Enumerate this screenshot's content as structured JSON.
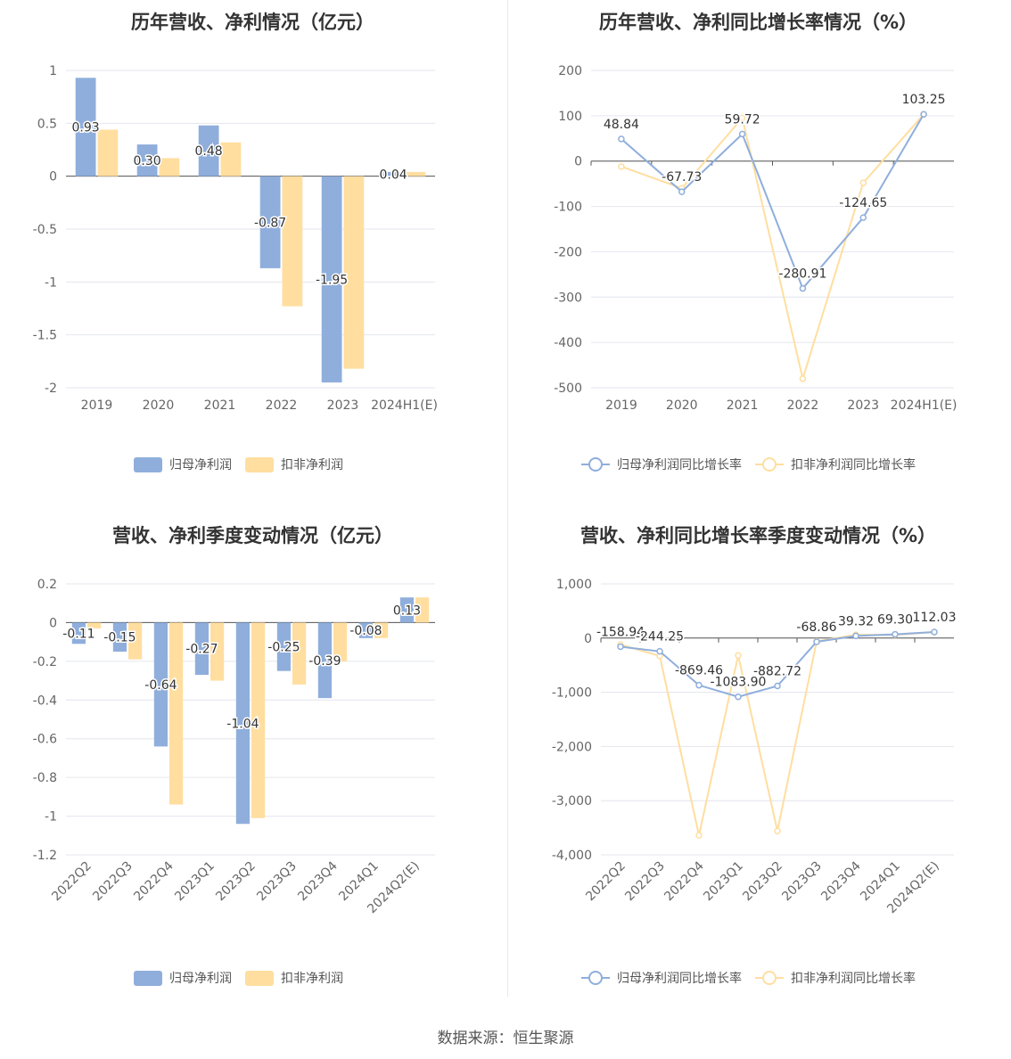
{
  "source_label": "数据来源：恒生聚源",
  "colors": {
    "series1": "#8faedc",
    "series2": "#ffdea0",
    "grid": "#e4e6ee",
    "axis": "#555555"
  },
  "chart_data": [
    {
      "type": "bar",
      "title": "历年营收、净利情况（亿元）",
      "categories": [
        "2019",
        "2020",
        "2021",
        "2022",
        "2023",
        "2024H1(E)"
      ],
      "ylim": [
        -2,
        1
      ],
      "yticks": [
        "1",
        "0.5",
        "0",
        "-0.5",
        "-1",
        "-1.5",
        "-2"
      ],
      "series": [
        {
          "name": "归母净利润",
          "values": [
            0.93,
            0.3,
            0.48,
            -0.87,
            -1.95,
            0.04
          ],
          "labels": [
            "0.93",
            "0.30",
            "0.48",
            "-0.87",
            "-1.95",
            "0.04"
          ]
        },
        {
          "name": "扣非净利润",
          "values": [
            0.44,
            0.17,
            0.32,
            -1.23,
            -1.82,
            0.04
          ]
        }
      ],
      "grid": true,
      "legend": "bottom-center"
    },
    {
      "type": "line",
      "title": "历年营收、净利同比增长率情况（%）",
      "categories": [
        "2019",
        "2020",
        "2021",
        "2022",
        "2023",
        "2024H1(E)"
      ],
      "ylim": [
        -500,
        200
      ],
      "yticks": [
        "200",
        "100",
        "0",
        "-100",
        "-200",
        "-300",
        "-400",
        "-500"
      ],
      "series": [
        {
          "name": "归母净利润同比增长率",
          "values": [
            48.84,
            -67.73,
            59.72,
            -280.91,
            -124.65,
            103.25
          ],
          "labels": [
            "48.84",
            "-67.73",
            "59.72",
            "-280.91",
            "-124.65",
            "103.25"
          ]
        },
        {
          "name": "扣非净利润同比增长率",
          "values": [
            -12,
            -60,
            95,
            -480,
            -48,
            103
          ]
        }
      ],
      "grid": true,
      "legend": "bottom-center"
    },
    {
      "type": "bar",
      "title": "营收、净利季度变动情况（亿元）",
      "categories": [
        "2022Q2",
        "2022Q3",
        "2022Q4",
        "2023Q1",
        "2023Q2",
        "2023Q3",
        "2023Q4",
        "2024Q1",
        "2024Q2(E)"
      ],
      "ylim": [
        -1.2,
        0.2
      ],
      "yticks": [
        "0.2",
        "0",
        "-0.2",
        "-0.4",
        "-0.6",
        "-0.8",
        "-1",
        "-1.2"
      ],
      "series": [
        {
          "name": "归母净利润",
          "values": [
            -0.11,
            -0.15,
            -0.64,
            -0.27,
            -1.04,
            -0.25,
            -0.39,
            -0.08,
            0.13
          ],
          "labels": [
            "-0.11",
            "-0.15",
            "-0.64",
            "-0.27",
            "-1.04",
            "-0.25",
            "-0.39",
            "-0.08",
            "0.13"
          ]
        },
        {
          "name": "扣非净利润",
          "values": [
            -0.03,
            -0.19,
            -0.94,
            -0.3,
            -1.01,
            -0.32,
            -0.2,
            -0.08,
            0.13
          ]
        }
      ],
      "grid": true,
      "legend": "bottom-center"
    },
    {
      "type": "line",
      "title": "营收、净利同比增长率季度变动情况（%）",
      "categories": [
        "2022Q2",
        "2022Q3",
        "2022Q4",
        "2023Q1",
        "2023Q2",
        "2023Q3",
        "2023Q4",
        "2024Q1",
        "2024Q2(E)"
      ],
      "ylim": [
        -4000,
        1000
      ],
      "yticks": [
        "1,000",
        "0",
        "-1,000",
        "-2,000",
        "-3,000",
        "-4,000"
      ],
      "series": [
        {
          "name": "归母净利润同比增长率",
          "values": [
            -158.94,
            -244.25,
            -869.46,
            -1083.9,
            -882.72,
            -68.86,
            39.32,
            69.3,
            112.03
          ],
          "labels": [
            "-158.94",
            "-244.25",
            "-869.46",
            "-1083.90",
            "-882.72",
            "-68.86",
            "39.32",
            "69.30",
            "112.03"
          ]
        },
        {
          "name": "扣非净利润同比增长率",
          "values": [
            -120,
            -330,
            -3640,
            -320,
            -3560,
            -60,
            60,
            60,
            110
          ]
        }
      ],
      "grid": true,
      "legend": "bottom-center"
    }
  ]
}
